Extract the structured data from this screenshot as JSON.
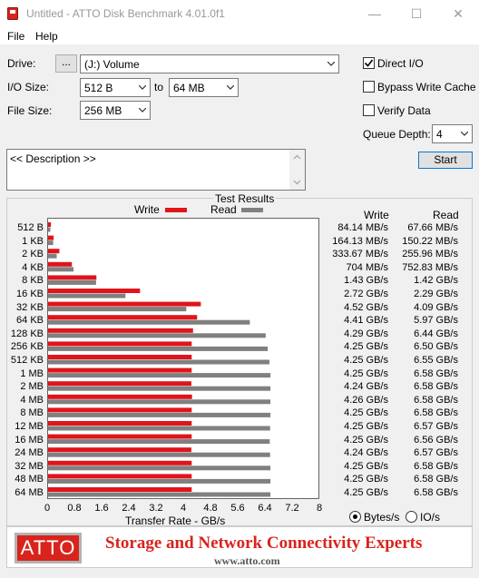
{
  "window": {
    "title": "Untitled - ATTO Disk Benchmark 4.01.0f1",
    "minimize_glyph": "—",
    "maximize_glyph": "☐",
    "close_glyph": "✕",
    "icon": "disk-app-icon",
    "accent": "#d8241c"
  },
  "menu": {
    "file": "File",
    "help": "Help"
  },
  "settings": {
    "drive_label": "Drive:",
    "browse_label": "...",
    "drive_value": "(J:) Volume",
    "io_size_label": "I/O Size:",
    "io_from": "512 B",
    "io_to_label": "to",
    "io_to": "64 MB",
    "file_size_label": "File Size:",
    "file_size": "256 MB",
    "direct_io_label": "Direct I/O",
    "direct_io_checked": true,
    "bypass_label": "Bypass Write Cache",
    "bypass_checked": false,
    "verify_label": "Verify Data",
    "verify_checked": false,
    "queue_label": "Queue Depth:",
    "queue_value": "4",
    "start_label": "Start",
    "description": "<< Description >>"
  },
  "results": {
    "title": "Test Results",
    "write_legend": "Write",
    "read_legend": "Read",
    "write_col": "Write",
    "read_col": "Read",
    "write_values": [
      "84.14 MB/s",
      "164.13 MB/s",
      "333.67 MB/s",
      "704 MB/s",
      "1.43 GB/s",
      "2.72 GB/s",
      "4.52 GB/s",
      "4.41 GB/s",
      "4.29 GB/s",
      "4.25 GB/s",
      "4.25 GB/s",
      "4.25 GB/s",
      "4.24 GB/s",
      "4.26 GB/s",
      "4.25 GB/s",
      "4.25 GB/s",
      "4.25 GB/s",
      "4.24 GB/s",
      "4.25 GB/s",
      "4.25 GB/s",
      "4.25 GB/s"
    ],
    "read_values": [
      "67.66 MB/s",
      "150.22 MB/s",
      "255.96 MB/s",
      "752.83 MB/s",
      "1.42 GB/s",
      "2.29 GB/s",
      "4.09 GB/s",
      "5.97 GB/s",
      "6.44 GB/s",
      "6.50 GB/s",
      "6.55 GB/s",
      "6.58 GB/s",
      "6.58 GB/s",
      "6.58 GB/s",
      "6.58 GB/s",
      "6.57 GB/s",
      "6.56 GB/s",
      "6.57 GB/s",
      "6.58 GB/s",
      "6.58 GB/s",
      "6.58 GB/s"
    ],
    "units_bytes": "Bytes/s",
    "units_io": "IO/s",
    "units_selected": "bytes"
  },
  "chart_data": {
    "type": "bar",
    "orientation": "horizontal",
    "categories": [
      "512 B",
      "1 KB",
      "2 KB",
      "4 KB",
      "8 KB",
      "16 KB",
      "32 KB",
      "64 KB",
      "128 KB",
      "256 KB",
      "512 KB",
      "1 MB",
      "2 MB",
      "4 MB",
      "8 MB",
      "12 MB",
      "16 MB",
      "24 MB",
      "32 MB",
      "48 MB",
      "64 MB"
    ],
    "series": [
      {
        "name": "Write",
        "color": "#e0141b",
        "values": [
          0.084,
          0.164,
          0.334,
          0.704,
          1.43,
          2.72,
          4.52,
          4.41,
          4.29,
          4.25,
          4.25,
          4.25,
          4.24,
          4.26,
          4.25,
          4.25,
          4.25,
          4.24,
          4.25,
          4.25,
          4.25
        ]
      },
      {
        "name": "Read",
        "color": "#808080",
        "values": [
          0.068,
          0.15,
          0.256,
          0.753,
          1.42,
          2.29,
          4.09,
          5.97,
          6.44,
          6.5,
          6.55,
          6.58,
          6.58,
          6.58,
          6.58,
          6.57,
          6.56,
          6.57,
          6.58,
          6.58,
          6.58
        ]
      }
    ],
    "xticks": [
      "0",
      "0.8",
      "1.6",
      "2.4",
      "3.2",
      "4",
      "4.8",
      "5.6",
      "6.4",
      "7.2",
      "8"
    ],
    "xlim": [
      0,
      8
    ],
    "xlabel": "Transfer Rate - GB/s",
    "title": "Test Results",
    "legend_position": "top-center",
    "grid": false
  },
  "banner": {
    "logo": "ATTO",
    "tagline": "Storage and Network Connectivity Experts",
    "url": "www.atto.com"
  }
}
